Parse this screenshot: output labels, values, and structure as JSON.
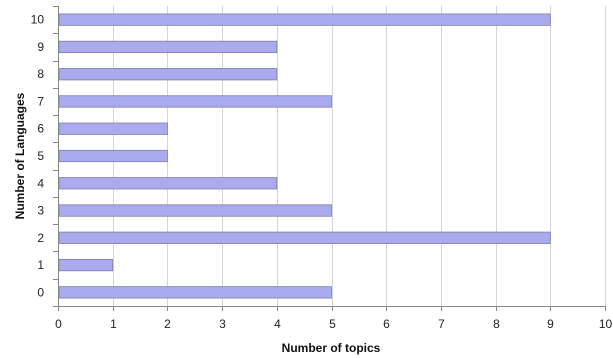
{
  "chart_data": {
    "type": "bar",
    "orientation": "horizontal",
    "categories": [
      "0",
      "1",
      "2",
      "3",
      "4",
      "5",
      "6",
      "7",
      "8",
      "9",
      "10"
    ],
    "values": [
      5,
      1,
      9,
      5,
      4,
      2,
      2,
      5,
      4,
      4,
      9
    ],
    "xlabel": "Number of topics",
    "ylabel": "Number of Languages",
    "xlim": [
      0,
      10
    ],
    "xticks": [
      "0",
      "1",
      "2",
      "3",
      "4",
      "5",
      "6",
      "7",
      "8",
      "9",
      "10"
    ],
    "grid": "vertical",
    "legend": "none",
    "bar_color": "#aaaaee",
    "bar_edge_color": "#7f7fa8"
  }
}
